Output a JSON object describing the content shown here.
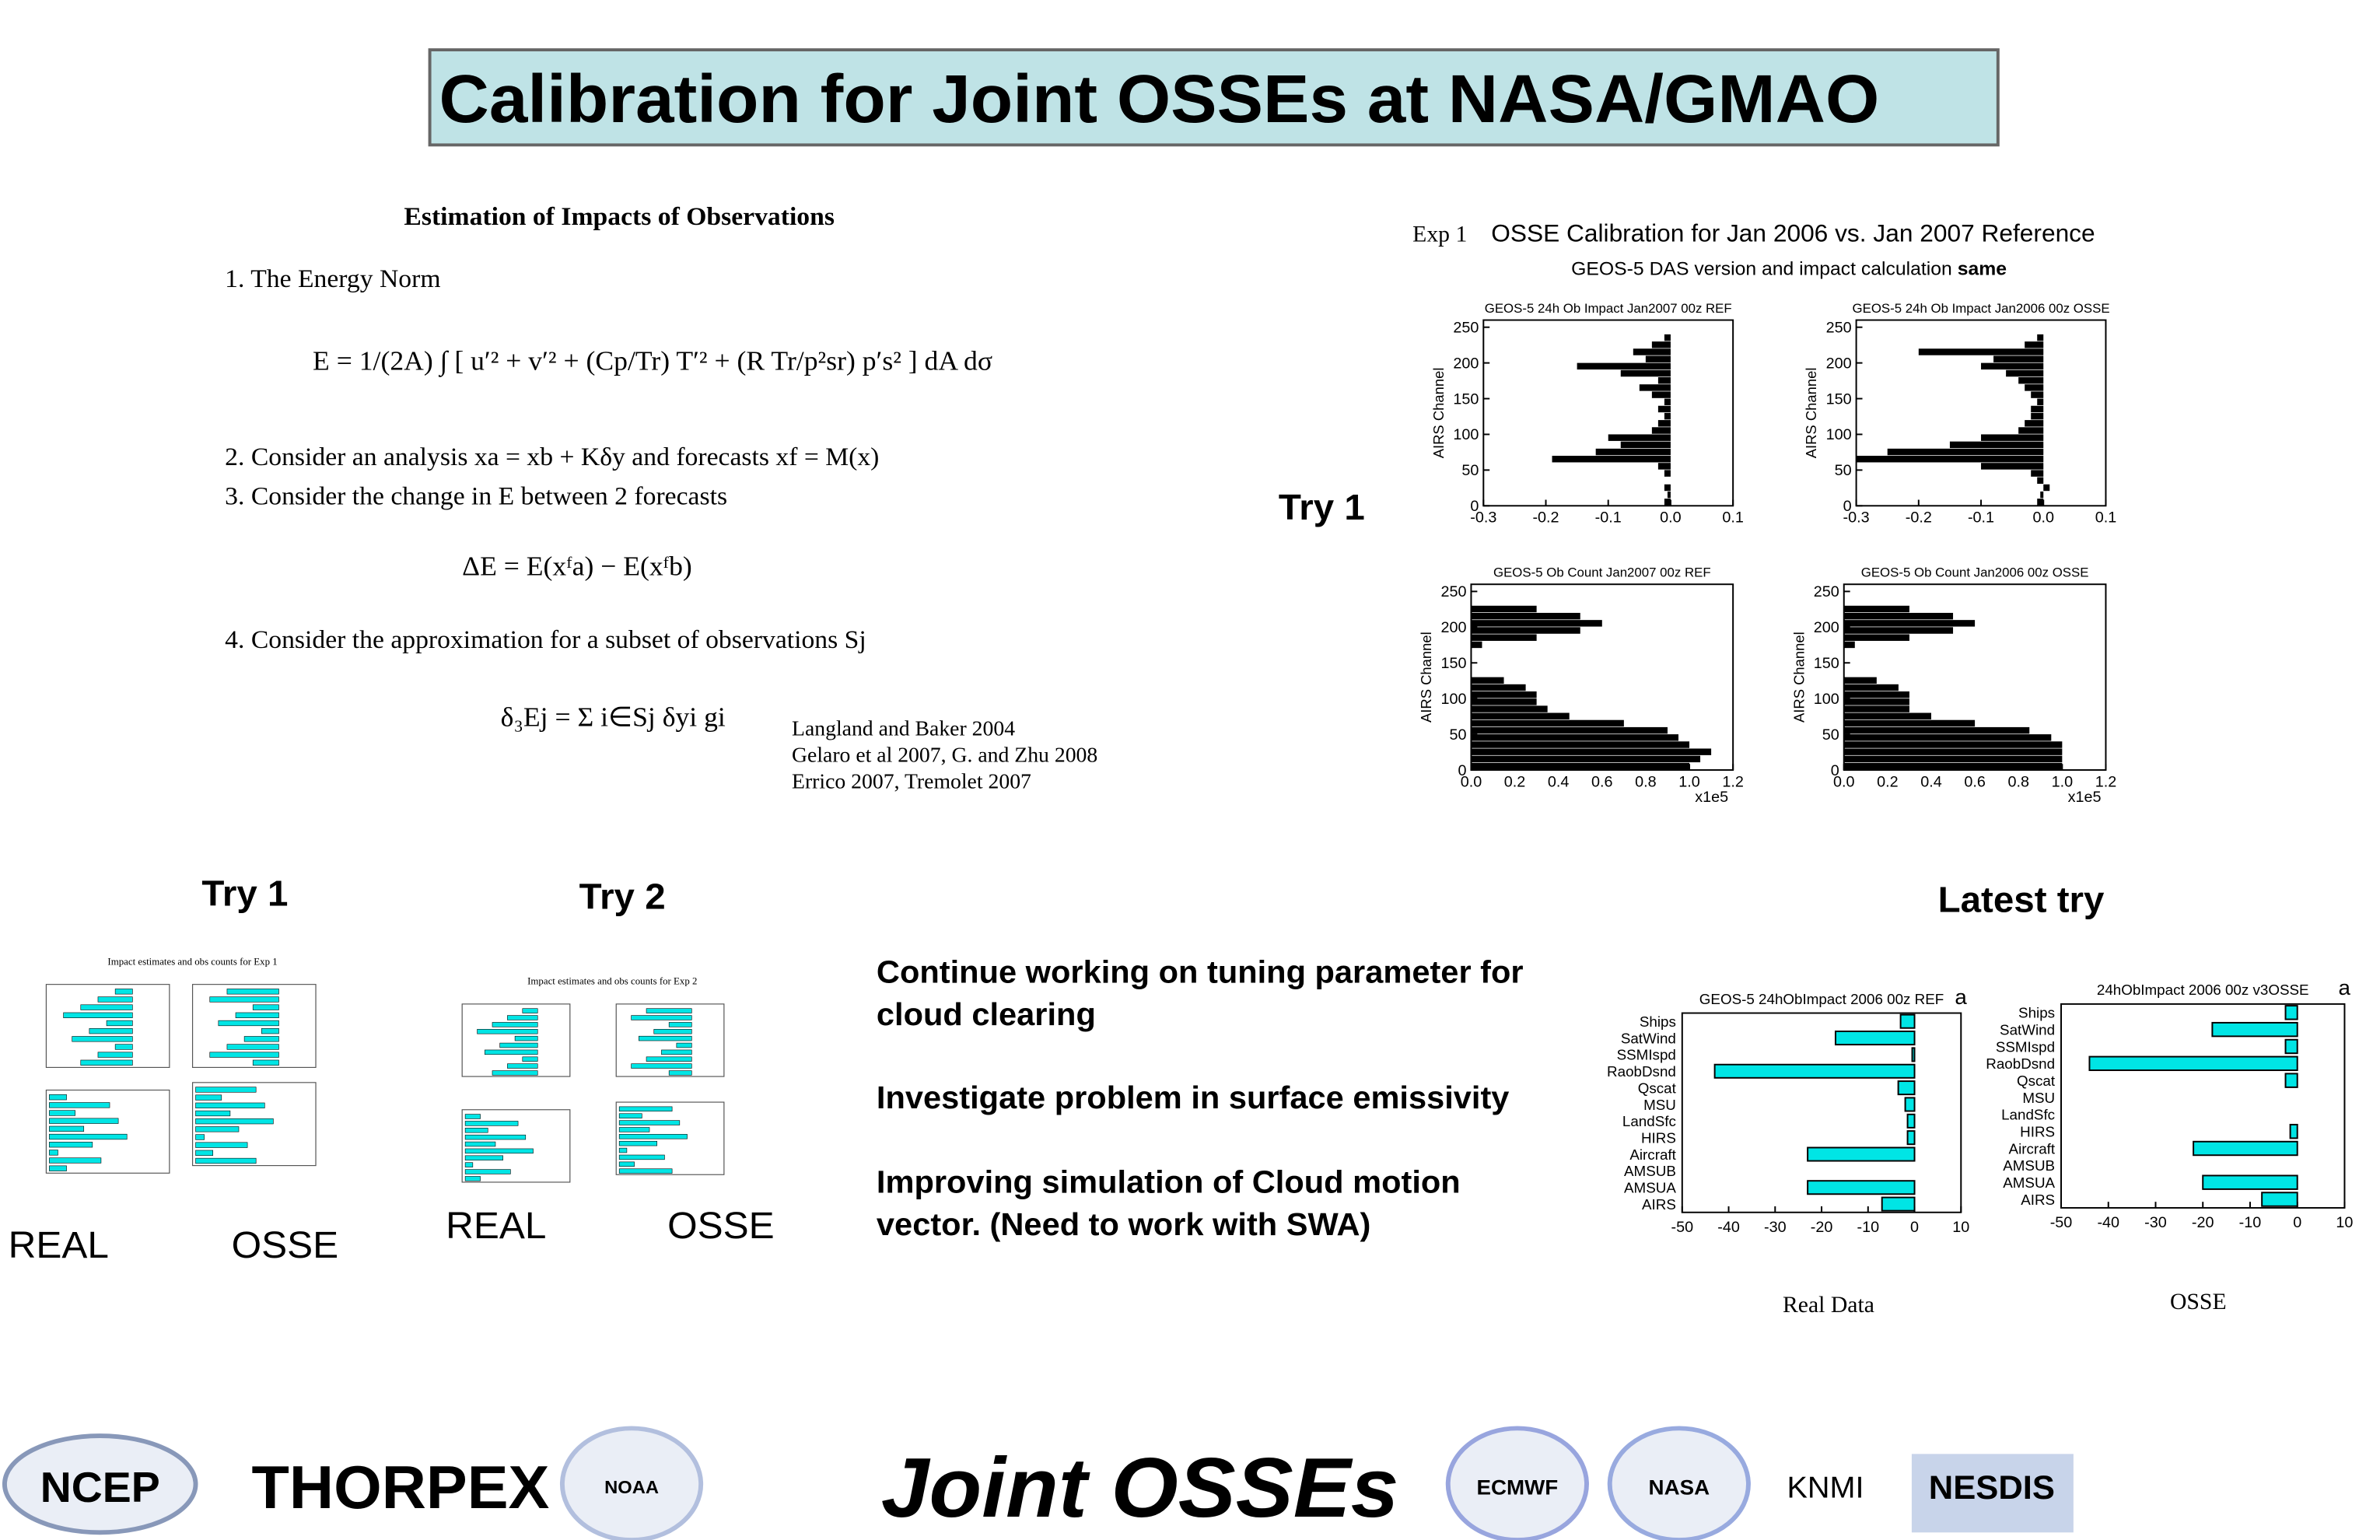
{
  "header": {
    "title": "Calibration for Joint OSSEs at NASA/GMAO"
  },
  "energy": {
    "heading": "Estimation of Impacts of Observations",
    "items": [
      {
        "text": "1.  The Energy Norm",
        "equation": "E = 1/(2A) ∫ [ u′² + v′² + (Cp/Tr) T′² + (R Tr/p²sr) p′s² ] dA dσ"
      },
      {
        "text": "2.  Consider an analysis xa = xb + Kδy and forecasts xf = M(x)"
      },
      {
        "text": "3.  Consider the change in E between 2 forecasts",
        "equation": "ΔE  =  E(xᶠa)  −  E(xᶠb)"
      },
      {
        "text": "4.  Consider the approximation for a subset of observations Sj",
        "equation": "δ₃Ej  =  Σ i∈Sj  δyi gi"
      }
    ],
    "references": [
      "Langland and Baker 2004",
      "Gelaro et al 2007, G. and Zhu 2008",
      "Errico 2007, Tremolet 2007"
    ]
  },
  "airs": {
    "label": "Try 1",
    "exp": "Exp 1",
    "title": "OSSE Calibration for Jan 2006 vs. Jan 2007 Reference",
    "subtitle": "GEOS-5 DAS version and impact calculation",
    "subtitle_bold": "same",
    "channels": [
      5,
      15,
      25,
      35,
      45,
      55,
      65,
      75,
      85,
      95,
      105,
      115,
      125,
      135,
      145,
      155,
      165,
      175,
      185,
      195,
      205,
      215,
      225,
      235
    ],
    "panels": [
      {
        "title": "GEOS-5 24h Ob Impact Jan2007 00z  REF",
        "ylabel": "AIRS Channel",
        "xlim": [
          -0.3,
          0.1
        ],
        "xticks": [
          -0.3,
          -0.2,
          -0.1,
          {
            "value": 0,
            "label": "0.0"
          },
          0.1
        ],
        "ylim": [
          0,
          260
        ],
        "yticks": [
          0,
          50,
          100,
          150,
          200,
          250
        ],
        "values": [
          -0.01,
          -0.005,
          -0.01,
          0,
          -0.01,
          -0.02,
          -0.19,
          -0.12,
          -0.08,
          -0.1,
          -0.03,
          -0.02,
          -0.01,
          -0.02,
          -0.01,
          -0.03,
          -0.05,
          -0.02,
          -0.08,
          -0.15,
          -0.04,
          -0.06,
          -0.03,
          -0.01
        ]
      },
      {
        "title": "GEOS-5 24h Ob Impact Jan2006 00z  OSSE",
        "ylabel": "AIRS Channel",
        "xlim": [
          -0.3,
          0.1
        ],
        "xticks": [
          -0.3,
          -0.2,
          -0.1,
          {
            "value": 0,
            "label": "0.0"
          },
          0.1
        ],
        "ylim": [
          0,
          260
        ],
        "yticks": [
          0,
          50,
          100,
          150,
          200,
          250
        ],
        "values": [
          -0.01,
          -0.005,
          0.01,
          -0.01,
          -0.02,
          -0.1,
          -0.3,
          -0.25,
          -0.15,
          -0.1,
          -0.04,
          -0.03,
          -0.02,
          -0.02,
          -0.01,
          -0.02,
          -0.03,
          -0.04,
          -0.06,
          -0.1,
          -0.08,
          -0.2,
          -0.03,
          -0.01
        ]
      },
      {
        "title": "GEOS-5 Ob Count Jan2007 00z  REF",
        "ylabel": "AIRS Channel",
        "xunit": "x1e5",
        "xlim": [
          0,
          1.2
        ],
        "xticks": [
          {
            "value": 0,
            "label": "0.0"
          },
          0.2,
          0.4,
          0.6,
          0.8,
          {
            "value": 1,
            "label": "1.0"
          },
          1.2
        ],
        "ylim": [
          0,
          260
        ],
        "yticks": [
          0,
          50,
          100,
          150,
          200,
          250
        ],
        "values": [
          1.0,
          1.05,
          1.1,
          1.0,
          0.95,
          0.9,
          0.7,
          0.45,
          0.35,
          0.3,
          0.3,
          0.25,
          0.15,
          0,
          0,
          0,
          0,
          0.05,
          0.3,
          0.5,
          0.6,
          0.5,
          0.3,
          0
        ]
      },
      {
        "title": "GEOS-5 Ob Count Jan2006 00z  OSSE",
        "ylabel": "AIRS Channel",
        "xunit": "x1e5",
        "xlim": [
          0,
          1.2
        ],
        "xticks": [
          {
            "value": 0,
            "label": "0.0"
          },
          0.2,
          0.4,
          0.6,
          0.8,
          {
            "value": 1,
            "label": "1.0"
          },
          1.2
        ],
        "ylim": [
          0,
          260
        ],
        "yticks": [
          0,
          50,
          100,
          150,
          200,
          250
        ],
        "values": [
          1.0,
          1.0,
          1.0,
          1.0,
          0.95,
          0.85,
          0.6,
          0.4,
          0.3,
          0.3,
          0.3,
          0.25,
          0.15,
          0,
          0,
          0,
          0,
          0.05,
          0.3,
          0.5,
          0.6,
          0.5,
          0.3,
          0
        ]
      }
    ]
  },
  "thumbnails": [
    {
      "label": "Try 1",
      "caption": "Impact estimates and obs counts for Exp 1",
      "sublabels": [
        "REAL",
        "OSSE"
      ]
    },
    {
      "label": "Try 2",
      "caption": "Impact estimates and obs counts for Exp 2",
      "sublabels": [
        "REAL",
        "OSSE"
      ]
    }
  ],
  "notes": [
    [
      "Continue working on tuning parameter for",
      "cloud clearing"
    ],
    [
      "Investigate problem in surface emissivity"
    ],
    [
      "Improving  simulation of Cloud motion",
      "vector.  (Need to work with SWA)"
    ]
  ],
  "latest": {
    "label": "Latest try",
    "charts": [
      {
        "type": "bar",
        "title": "GEOS-5 24hObImpact 2006 00z REF",
        "mark": "a",
        "caption": "Real Data",
        "color": "#00e5e5",
        "categories": [
          "Ships",
          "SatWind",
          "SSMIspd",
          "RaobDsnd",
          "Qscat",
          "MSU",
          "LandSfc",
          "HIRS",
          "Aircraft",
          "AMSUB",
          "AMSUA",
          "AIRS"
        ],
        "values": [
          -3,
          -17,
          -0.5,
          -43,
          -3.5,
          -2,
          -1.5,
          -1.5,
          -23,
          0,
          -23,
          -7
        ],
        "xlim": [
          -50,
          10
        ],
        "xticks": [
          -50,
          -40,
          -30,
          -20,
          -10,
          0,
          10
        ]
      },
      {
        "type": "bar",
        "title": "24hObImpact 2006 00z v3OSSE",
        "mark": "a",
        "caption": "OSSE",
        "color": "#00e5e5",
        "categories": [
          "Ships",
          "SatWind",
          "SSMIspd",
          "RaobDsnd",
          "Qscat",
          "MSU",
          "LandSfc",
          "HIRS",
          "Aircraft",
          "AMSUB",
          "AMSUA",
          "AIRS"
        ],
        "values": [
          -2.5,
          -18,
          -2.5,
          -44,
          -2.5,
          0,
          0,
          -1.5,
          -22,
          0,
          -20,
          -7.5
        ],
        "xlim": [
          -50,
          10
        ],
        "xticks": [
          -50,
          -40,
          -30,
          -20,
          -10,
          0,
          10
        ]
      }
    ]
  },
  "logos": [
    "NCEP",
    "THORPEX",
    "NOAA",
    "Joint OSSEs",
    "ECMWF",
    "NASA",
    "KNMI",
    "NESDIS"
  ]
}
